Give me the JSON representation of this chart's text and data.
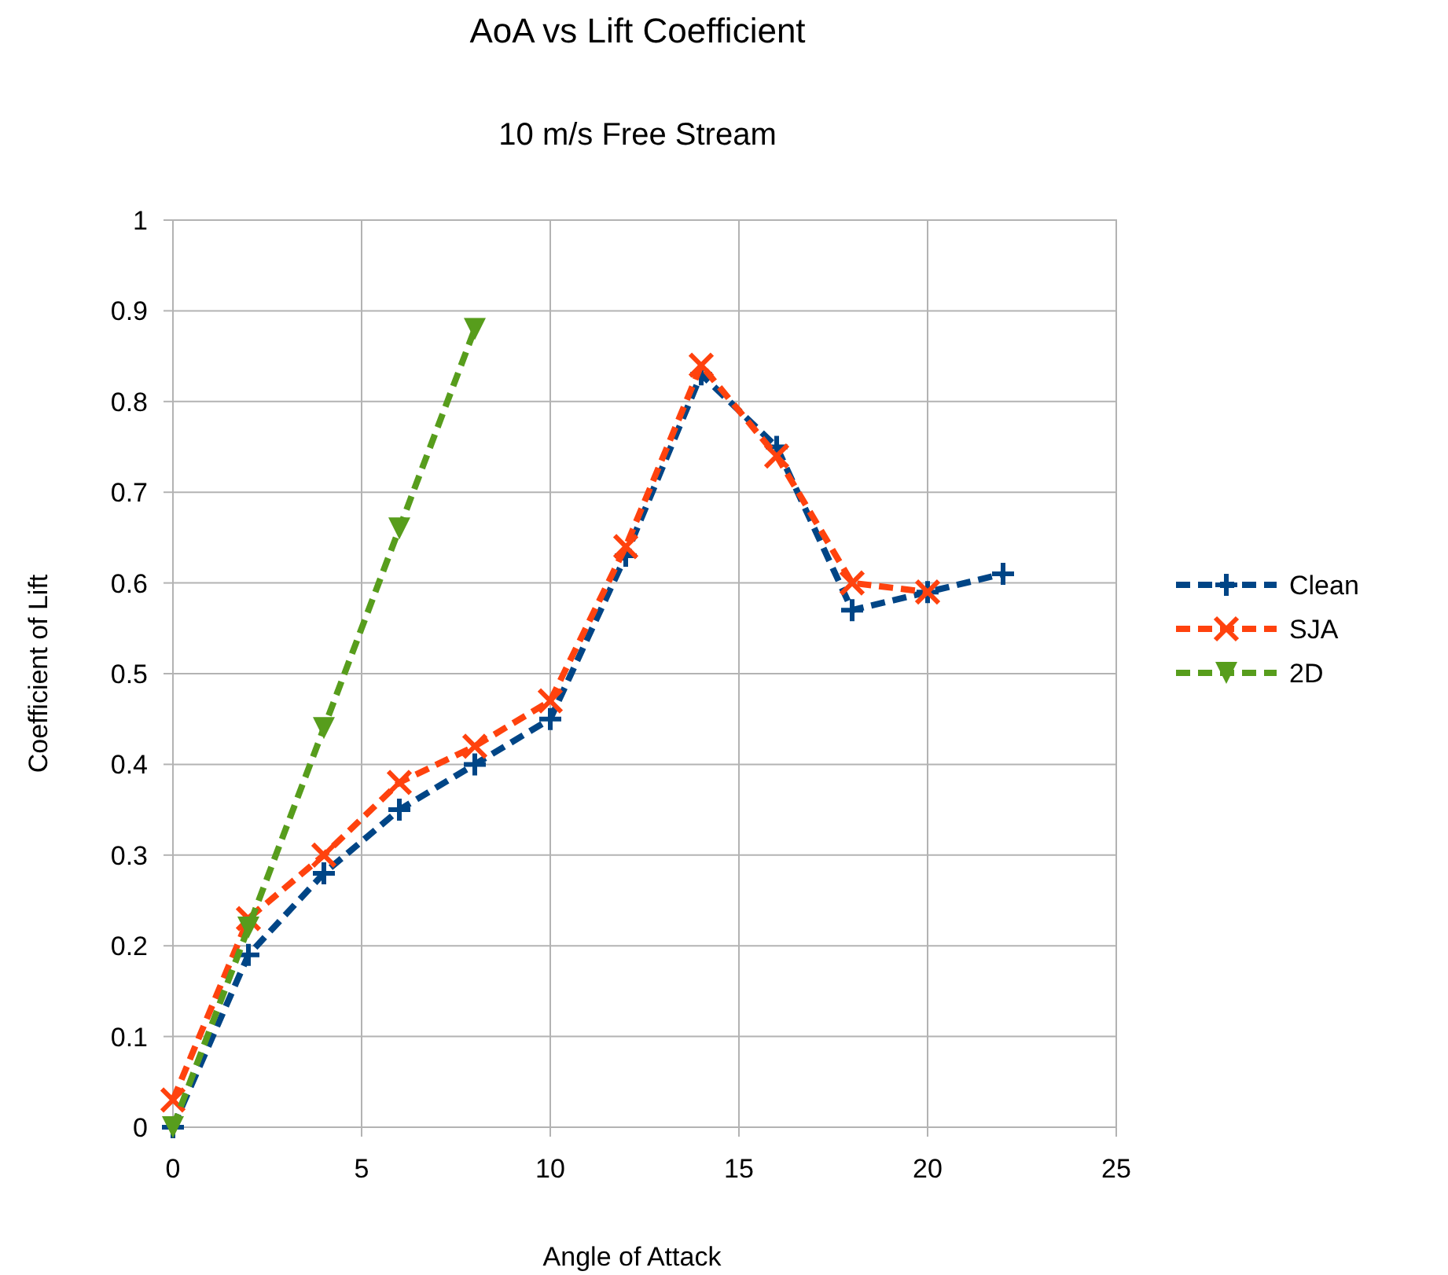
{
  "chart_data": {
    "type": "line",
    "title": "AoA vs Lift Coefficient",
    "subtitle": "10 m/s Free Stream",
    "xlabel": "Angle of Attack",
    "ylabel": "Coefficient of Lift",
    "xlim": [
      0,
      25
    ],
    "xticks": [
      0,
      5,
      10,
      15,
      20,
      25
    ],
    "ylim": [
      0,
      1
    ],
    "yticks": [
      0,
      0.1,
      0.2,
      0.3,
      0.4,
      0.5,
      0.6,
      0.7,
      0.8,
      0.9,
      1
    ],
    "grid": true,
    "legend": "right",
    "line_style": "dashed",
    "series": [
      {
        "name": "Clean",
        "color": "#004586",
        "marker": "plus",
        "x": [
          0,
          2,
          4,
          6,
          8,
          10,
          12,
          14,
          16,
          18,
          20,
          22
        ],
        "values": [
          0,
          0.19,
          0.28,
          0.35,
          0.4,
          0.45,
          0.63,
          0.83,
          0.75,
          0.57,
          0.59,
          0.61
        ]
      },
      {
        "name": "SJA",
        "color": "#ff420e",
        "marker": "cross",
        "x": [
          0,
          2,
          4,
          6,
          8,
          10,
          12,
          14,
          16,
          18,
          20
        ],
        "values": [
          0.03,
          0.23,
          0.3,
          0.38,
          0.42,
          0.47,
          0.64,
          0.84,
          0.74,
          0.6,
          0.59
        ]
      },
      {
        "name": "2D",
        "color": "#579d1c",
        "marker": "triangle",
        "x": [
          0,
          2,
          4,
          6,
          8
        ],
        "values": [
          0,
          0.22,
          0.44,
          0.66,
          0.88
        ]
      }
    ]
  }
}
